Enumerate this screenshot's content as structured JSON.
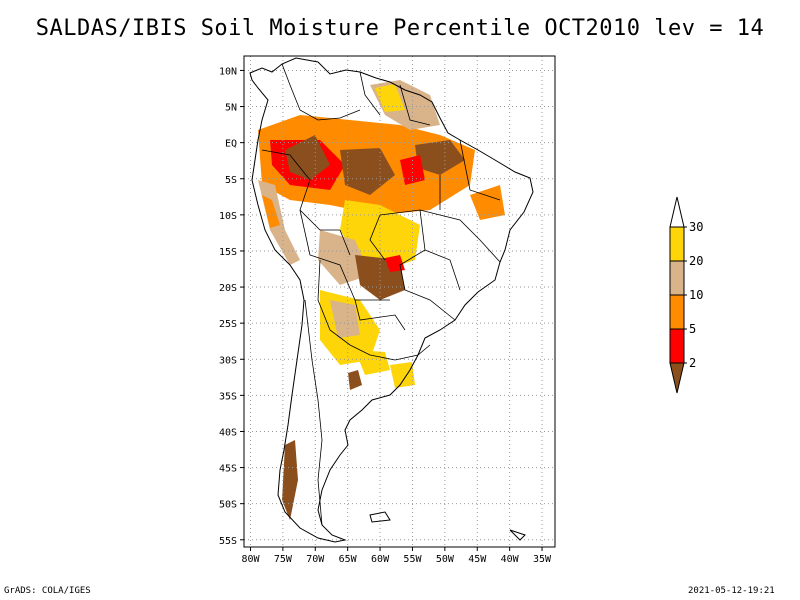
{
  "title": "SALDAS/IBIS Soil Moisture Percentile OCT2010 lev = 14",
  "footer": {
    "left": "GrADS: COLA/IGES",
    "right": "2021-05-12-19:21"
  },
  "axes": {
    "lon_labels": [
      "80W",
      "75W",
      "70W",
      "65W",
      "60W",
      "55W",
      "50W",
      "45W",
      "40W",
      "35W"
    ],
    "lon_values": [
      -80,
      -75,
      -70,
      -65,
      -60,
      -55,
      -50,
      -45,
      -40,
      -35
    ],
    "lat_labels": [
      "10N",
      "5N",
      "EQ",
      "5S",
      "10S",
      "15S",
      "20S",
      "25S",
      "30S",
      "35S",
      "40S",
      "45S",
      "50S",
      "55S"
    ],
    "lat_values": [
      10,
      5,
      0,
      -5,
      -10,
      -15,
      -20,
      -25,
      -30,
      -35,
      -40,
      -45,
      -50,
      -55
    ],
    "lon_range": [
      -81,
      -33
    ],
    "lat_range": [
      12,
      -56
    ]
  },
  "legend": {
    "labels": [
      "30",
      "20",
      "10",
      "5",
      "2"
    ],
    "levels": [
      30,
      20,
      10,
      5,
      2
    ],
    "colors": {
      "above": "#ffffff",
      "20-30": "#fdd508",
      "10-20": "#d9b48a",
      "5-10": "#ff8c00",
      "2-5": "#ff0000",
      "below": "#8b4f1e"
    }
  },
  "map_shading": [
    {
      "region": "amazon-west",
      "category": "2-5"
    },
    {
      "region": "amazon-central",
      "category": "below"
    },
    {
      "region": "amazon-basin",
      "category": "5-10"
    },
    {
      "region": "guianas",
      "category": "10-20"
    },
    {
      "region": "east-amazon",
      "category": "below"
    },
    {
      "region": "central-brazil",
      "category": "20-30"
    },
    {
      "region": "mato-grosso",
      "category": "below"
    },
    {
      "region": "chaco",
      "category": "20-30"
    },
    {
      "region": "pampas",
      "category": "20-30"
    },
    {
      "region": "uruguay",
      "category": "20-30"
    },
    {
      "region": "patagonia-spot",
      "category": "below"
    },
    {
      "region": "chile-south",
      "category": "below"
    }
  ]
}
